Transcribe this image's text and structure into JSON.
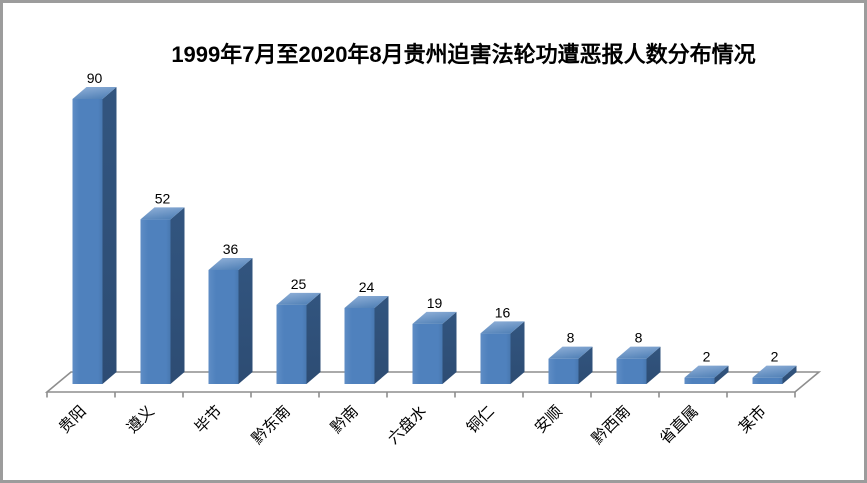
{
  "chart_data": {
    "type": "bar",
    "style": "3d-column",
    "title": "1999年7月至2020年8月贵州迫害法轮功遭恶报人数分布情况",
    "categories": [
      "贵阳",
      "遵义",
      "毕节",
      "黔东南",
      "黔南",
      "六盘水",
      "铜仁",
      "安顺",
      "黔西南",
      "省直属",
      "某市"
    ],
    "values": [
      90,
      52,
      36,
      25,
      24,
      19,
      16,
      8,
      8,
      2,
      2
    ],
    "xlabel": "",
    "ylabel": "",
    "ylim": [
      0,
      95
    ],
    "grid": false,
    "legend_position": "none",
    "data_labels": true,
    "category_label_rotation_deg": -45,
    "colors": {
      "bar_front": "#4f81bd",
      "bar_front_light": "#5f8dc5",
      "bar_front_dark": "#4878b0",
      "bar_side": "#32557f",
      "bar_side_dark": "#2d4c73",
      "bar_top_light": "#94b3da",
      "bar_top": "#5483b8",
      "axis_line": "#8e8e8e",
      "label_text": "#000000",
      "background": "#ffffff",
      "frame_border": "#9c9c9c"
    }
  }
}
